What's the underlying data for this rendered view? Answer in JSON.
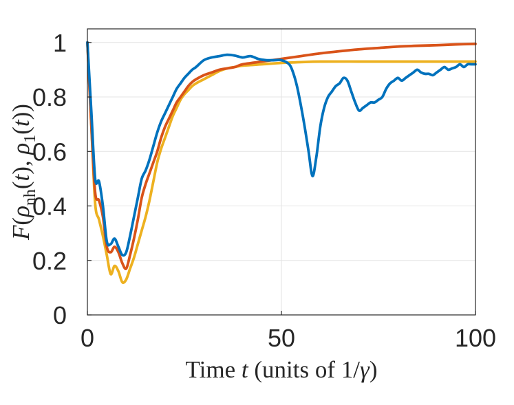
{
  "chart_data": {
    "type": "line",
    "xlabel": "Time t (units of 1/γ)",
    "ylabel": "F(ρnh(t), ρ1(t))",
    "xlim": [
      0,
      100
    ],
    "ylim": [
      0,
      1.05
    ],
    "xticks": [
      0,
      50,
      100
    ],
    "yticks": [
      0,
      0.2,
      0.4,
      0.6,
      0.8,
      1
    ],
    "xtick_labels": [
      "0",
      "50",
      "100"
    ],
    "ytick_labels": [
      "0",
      "0.2",
      "0.4",
      "0.6",
      "0.8",
      "1"
    ],
    "grid": true,
    "series": [
      {
        "color": "#0072BD",
        "x": [
          0,
          1,
          2,
          3,
          4,
          5,
          6,
          7,
          8,
          9,
          10,
          11,
          12,
          13,
          14,
          15,
          16,
          17,
          18,
          19,
          20,
          21,
          22,
          23,
          24,
          25,
          26,
          27,
          28,
          30,
          32,
          34,
          36,
          38,
          40,
          42,
          44,
          46,
          48,
          50,
          52,
          53,
          54,
          55,
          56,
          57,
          58,
          59,
          60,
          61,
          62,
          63,
          64,
          65,
          66,
          67,
          68,
          69,
          70,
          71,
          72,
          73,
          74,
          75,
          76,
          77,
          78,
          79,
          80,
          81,
          82,
          83,
          84,
          85,
          86,
          87,
          88,
          89,
          90,
          91,
          92,
          93,
          94,
          95,
          96,
          97,
          98,
          99,
          100
        ],
        "y": [
          1,
          0.75,
          0.5,
          0.49,
          0.4,
          0.27,
          0.26,
          0.28,
          0.25,
          0.22,
          0.23,
          0.29,
          0.36,
          0.43,
          0.5,
          0.53,
          0.57,
          0.62,
          0.67,
          0.71,
          0.74,
          0.77,
          0.8,
          0.83,
          0.85,
          0.87,
          0.885,
          0.9,
          0.91,
          0.935,
          0.945,
          0.95,
          0.955,
          0.952,
          0.945,
          0.95,
          0.94,
          0.935,
          0.935,
          0.935,
          0.92,
          0.89,
          0.84,
          0.77,
          0.69,
          0.6,
          0.51,
          0.58,
          0.69,
          0.76,
          0.8,
          0.82,
          0.84,
          0.85,
          0.87,
          0.86,
          0.82,
          0.78,
          0.75,
          0.76,
          0.77,
          0.78,
          0.78,
          0.79,
          0.8,
          0.83,
          0.85,
          0.86,
          0.87,
          0.86,
          0.87,
          0.88,
          0.89,
          0.9,
          0.89,
          0.885,
          0.885,
          0.88,
          0.89,
          0.9,
          0.91,
          0.9,
          0.905,
          0.91,
          0.92,
          0.91,
          0.92,
          0.92,
          0.92
        ]
      },
      {
        "color": "#D95319",
        "x": [
          0,
          1,
          2,
          3,
          4,
          5,
          6,
          7,
          8,
          9,
          10,
          11,
          12,
          13,
          14,
          15,
          16,
          17,
          18,
          19,
          20,
          21,
          22,
          23,
          24,
          25,
          26,
          27,
          28,
          30,
          32,
          34,
          36,
          38,
          40,
          45,
          50,
          55,
          60,
          65,
          70,
          75,
          80,
          85,
          90,
          95,
          100
        ],
        "y": [
          1,
          0.7,
          0.45,
          0.42,
          0.36,
          0.25,
          0.23,
          0.25,
          0.23,
          0.19,
          0.17,
          0.22,
          0.28,
          0.35,
          0.43,
          0.48,
          0.52,
          0.56,
          0.6,
          0.65,
          0.69,
          0.72,
          0.75,
          0.78,
          0.8,
          0.82,
          0.84,
          0.855,
          0.865,
          0.88,
          0.89,
          0.9,
          0.905,
          0.91,
          0.92,
          0.93,
          0.94,
          0.95,
          0.96,
          0.968,
          0.975,
          0.98,
          0.985,
          0.988,
          0.99,
          0.993,
          0.995
        ]
      },
      {
        "color": "#EDB120",
        "x": [
          0,
          1,
          2,
          3,
          4,
          5,
          6,
          7,
          8,
          9,
          10,
          11,
          12,
          13,
          14,
          15,
          16,
          17,
          18,
          19,
          20,
          21,
          22,
          23,
          24,
          25,
          26,
          27,
          28,
          30,
          32,
          34,
          36,
          38,
          40,
          45,
          50,
          55,
          60,
          70,
          80,
          90,
          100
        ],
        "y": [
          1,
          0.7,
          0.41,
          0.35,
          0.29,
          0.22,
          0.15,
          0.18,
          0.16,
          0.12,
          0.13,
          0.17,
          0.21,
          0.26,
          0.31,
          0.36,
          0.42,
          0.49,
          0.56,
          0.61,
          0.65,
          0.69,
          0.73,
          0.76,
          0.79,
          0.81,
          0.825,
          0.84,
          0.85,
          0.865,
          0.88,
          0.895,
          0.905,
          0.91,
          0.915,
          0.92,
          0.925,
          0.928,
          0.93,
          0.93,
          0.93,
          0.93,
          0.93
        ]
      }
    ]
  }
}
